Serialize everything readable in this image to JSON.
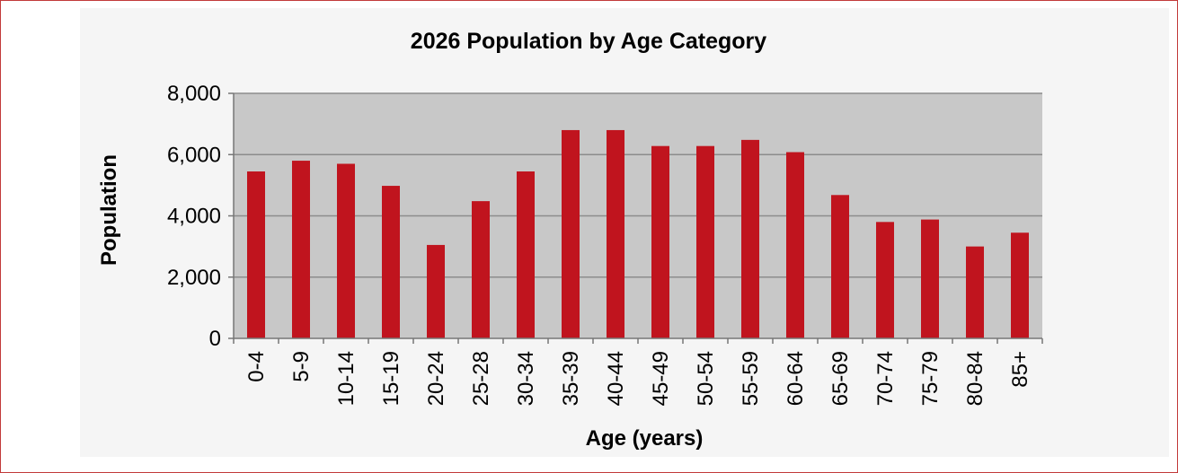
{
  "chart_data": {
    "type": "bar",
    "title": "2026 Population by Age Category",
    "xlabel": "Age (years)",
    "ylabel": "Population",
    "categories": [
      "0-4",
      "5-9",
      "10-14",
      "15-19",
      "20-24",
      "25-28",
      "30-34",
      "35-39",
      "40-44",
      "45-49",
      "50-54",
      "55-59",
      "60-64",
      "65-69",
      "70-74",
      "75-79",
      "80-84",
      "85+"
    ],
    "values": [
      5450,
      5800,
      5700,
      4980,
      3050,
      4480,
      5450,
      6800,
      6800,
      6280,
      6280,
      6480,
      6080,
      4680,
      3800,
      3880,
      3000,
      3450
    ],
    "ylim": [
      0,
      8000
    ],
    "yticks": [
      0,
      2000,
      4000,
      6000,
      8000
    ],
    "ytick_labels": [
      "0",
      "2,000",
      "4,000",
      "6,000",
      "8,000"
    ],
    "grid": true,
    "legend": "none",
    "colors": {
      "bar": "#c0141e",
      "plot_background": "#c8c8c8",
      "chart_background": "#f5f5f5",
      "frame": "#c23a3a",
      "gridline": "#8c8c8c"
    }
  }
}
